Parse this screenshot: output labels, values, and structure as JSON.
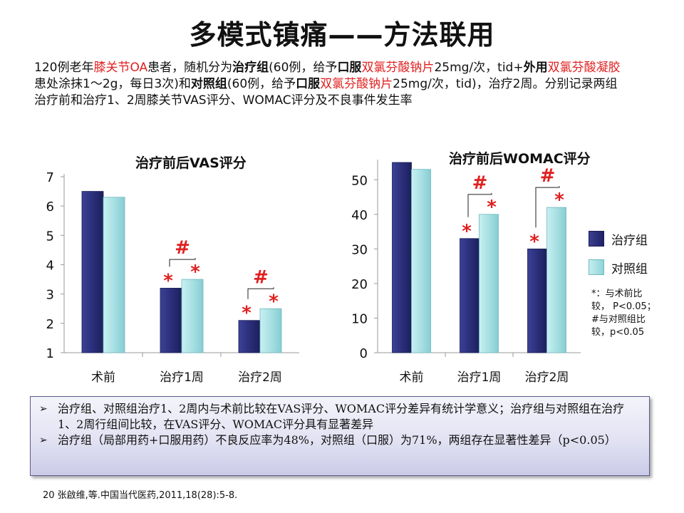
{
  "title": "多模式镇痛——方法联用",
  "intro": {
    "p1": "120例老年",
    "p2": "膝关节OA",
    "p3": "患者，随机分为",
    "p4": "治疗组",
    "p5": "(60例，给予",
    "p6": "口服",
    "p7": "双氯芬酸钠片",
    "p8": "25mg/次，tid+",
    "p9": "外用",
    "p10": "双氯芬酸凝胶",
    "p11": "患处涂抹1～2g，每日3次)和",
    "p12": "对照组",
    "p13": "(60例，给予",
    "p14": "口服",
    "p15": "双氯芬酸钠片",
    "p16": "25mg/次，tid)，治疗2周。分别记录两组治疗前和治疗1、2周膝关节VAS评分、WOMAC评分及不良事件发生率"
  },
  "colors": {
    "treatment": "#2b2f7a",
    "control": "#a8e0e3",
    "highlight": "#e02020"
  },
  "legend": {
    "treatment": "治疗组",
    "control": "对照组"
  },
  "note": {
    "line1": "*：与术前比",
    "line2": "较， P<0.05；",
    "line3": "#与对照组比",
    "line4": "较，p<0.05"
  },
  "chart_data": [
    {
      "type": "bar",
      "title": "治疗前后VAS评分",
      "categories": [
        "术前",
        "治疗1周",
        "治疗2周"
      ],
      "series": [
        {
          "name": "治疗组",
          "values": [
            6.5,
            3.2,
            2.1
          ],
          "markers": [
            "",
            "*",
            "*"
          ]
        },
        {
          "name": "对照组",
          "values": [
            6.3,
            3.5,
            2.5
          ],
          "markers": [
            "",
            "*",
            "*"
          ]
        }
      ],
      "group_markers": [
        "",
        "#",
        "#"
      ],
      "ylim": [
        1,
        7
      ],
      "yticks": [
        1,
        2,
        3,
        4,
        5,
        6,
        7
      ],
      "xlabel": "",
      "ylabel": "",
      "legend": "right"
    },
    {
      "type": "bar",
      "title": "治疗前后WOMAC评分",
      "categories": [
        "术前",
        "治疗1周",
        "治疗2周"
      ],
      "series": [
        {
          "name": "治疗组",
          "values": [
            55,
            33,
            30
          ],
          "markers": [
            "",
            "*",
            "*"
          ]
        },
        {
          "name": "对照组",
          "values": [
            53,
            40,
            42
          ],
          "markers": [
            "",
            "*",
            "*"
          ]
        }
      ],
      "group_markers": [
        "",
        "#",
        "#"
      ],
      "ylim": [
        0,
        55
      ],
      "yticks": [
        0,
        10,
        20,
        30,
        40,
        50
      ],
      "xlabel": "",
      "ylabel": "",
      "legend": "right"
    }
  ],
  "summary": [
    "治疗组、对照组治疗1、2周内与术前比较在VAS评分、WOMAC评分差异有统计学意义；治疗组与对照组在治疗1、2周行组间比较，在VAS评分、WOMAC评分具有显著差异",
    "治疗组（局部用药+口服用药）不良反应率为48%，对照组（口服）为71%，两组存在显著性差异（p<0.05）"
  ],
  "reference": "20 张啟维,等.中国当代医药,2011,18(28):5-8."
}
